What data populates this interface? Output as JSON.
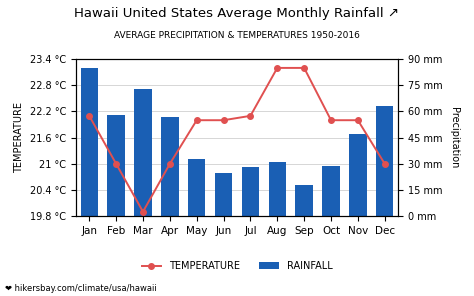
{
  "chart_data": {
    "type": "bar",
    "title": "Hawaii United States Average Monthly Rainfall ↗",
    "subtitle": "AVERAGE PRECIPITATION & TEMPERATURES 1950-2016",
    "categories": [
      "Jan",
      "Feb",
      "Mar",
      "Apr",
      "May",
      "Jun",
      "Jul",
      "Aug",
      "Sep",
      "Oct",
      "Nov",
      "Dec"
    ],
    "series": [
      {
        "name": "TEMPERATURE",
        "type": "line",
        "color": "#e05050",
        "marker": "o",
        "values": [
          22.1,
          21.0,
          19.9,
          21.0,
          22.0,
          22.0,
          22.1,
          23.2,
          23.2,
          22.0,
          22.0,
          21.0
        ]
      },
      {
        "name": "RAINFALL",
        "type": "bar",
        "axis": "y2",
        "color": "#1a5fb4",
        "values": [
          85,
          58,
          73,
          57,
          33,
          25,
          28,
          31,
          18,
          29,
          47,
          63
        ]
      }
    ],
    "ylabel": "TEMPERATURE",
    "y2label": "Precipitation",
    "ylim": [
      19.8,
      23.4
    ],
    "yticks": [
      {
        "value": 19.8,
        "label": "19.8 °C"
      },
      {
        "value": 20.4,
        "label": "20.4 °C"
      },
      {
        "value": 21.0,
        "label": "21 °C"
      },
      {
        "value": 21.6,
        "label": "21.6 °C"
      },
      {
        "value": 22.2,
        "label": "22.2 °C"
      },
      {
        "value": 22.8,
        "label": "22.8 °C"
      },
      {
        "value": 23.4,
        "label": "23.4 °C"
      }
    ],
    "y2lim": [
      0,
      90
    ],
    "y2ticks": [
      {
        "value": 0,
        "label": "0 mm"
      },
      {
        "value": 15,
        "label": "15 mm"
      },
      {
        "value": 30,
        "label": "30 mm"
      },
      {
        "value": 45,
        "label": "45 mm"
      },
      {
        "value": 60,
        "label": "60 mm"
      },
      {
        "value": 75,
        "label": "75 mm"
      },
      {
        "value": 90,
        "label": "90 mm"
      }
    ],
    "grid": true,
    "legend": "lower center",
    "annotations": [
      "❤ hikersbay.com/climate/usa/hawaii"
    ]
  }
}
